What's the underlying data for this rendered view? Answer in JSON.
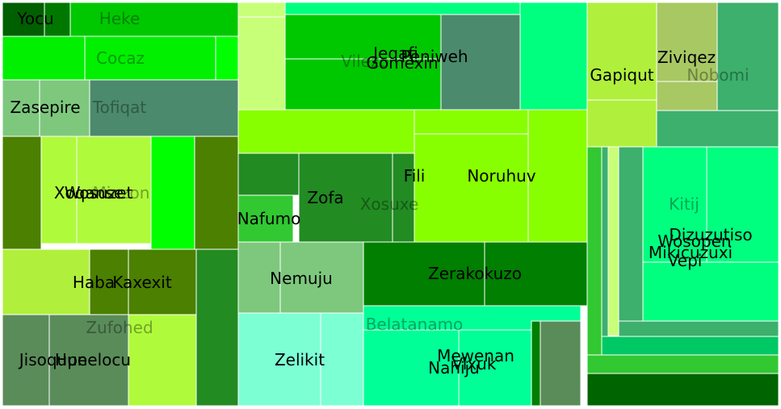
{
  "chart_data": {
    "type": "treemap",
    "title": "",
    "groups": [
      {
        "name": "Heke",
        "color": "#00c800",
        "leaves": [
          {
            "name": "Yocu",
            "color": "#005f00"
          }
        ]
      },
      {
        "name": "Cocaz",
        "color": "#00f000",
        "leaves": []
      },
      {
        "name": "Tofiqat",
        "color": "#4b8a6c",
        "leaves": [
          {
            "name": "Zasepire",
            "color": "#7dc87d"
          }
        ]
      },
      {
        "name": "Minzon",
        "color": "#b0fa3c",
        "leaves": [
          {
            "name": "Xoqanse"
          },
          {
            "name": "Wosuzet"
          }
        ]
      },
      {
        "name": "Zufohed",
        "color": "#2d8c2d",
        "leaves": [
          {
            "name": "Haba"
          },
          {
            "name": "Kaxexit"
          },
          {
            "name": "Jisoqupe"
          },
          {
            "name": "Hunelocu"
          }
        ]
      },
      {
        "name": "Vilezo",
        "color": "#00c800",
        "leaves": [
          {
            "name": "Jeqafi"
          },
          {
            "name": "Peniweh"
          },
          {
            "name": "Gomexin"
          }
        ]
      },
      {
        "name": "Xosuxe",
        "color": "#228b22",
        "leaves": [
          {
            "name": "Zofa"
          },
          {
            "name": "Fili"
          },
          {
            "name": "Noruhuv"
          },
          {
            "name": "Nafumo"
          }
        ]
      },
      {
        "name": "Belatanamo",
        "color": "#007f00",
        "leaves": [
          {
            "name": "Nemuju"
          },
          {
            "name": "Zerakokuzo"
          },
          {
            "name": "Zelikit"
          },
          {
            "name": "Mewenan"
          },
          {
            "name": "Vixuk"
          },
          {
            "name": "Nahiju"
          }
        ]
      },
      {
        "name": "Nobomi",
        "color": "#a8c864",
        "leaves": [
          {
            "name": "Gapiqut"
          },
          {
            "name": "Ziviqez"
          }
        ]
      },
      {
        "name": "Kitij",
        "color": "#00ff7f",
        "leaves": [
          {
            "name": "Dizuzutiso"
          },
          {
            "name": "Mikicuzuxi"
          },
          {
            "name": "Vepi"
          },
          {
            "name": "Wosopen"
          }
        ]
      }
    ]
  }
}
